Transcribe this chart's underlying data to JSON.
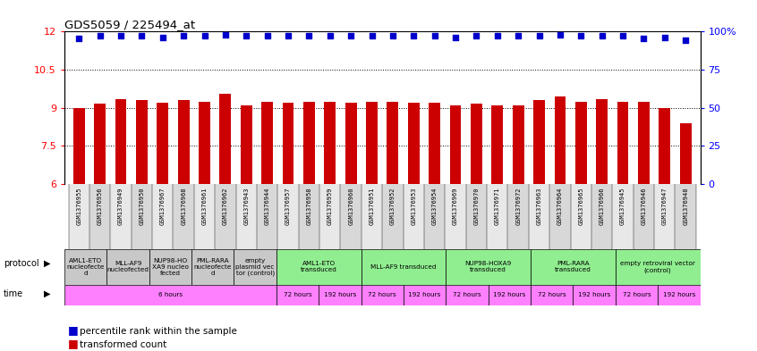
{
  "title": "GDS5059 / 225494_at",
  "samples": [
    "GSM1376955",
    "GSM1376956",
    "GSM1376949",
    "GSM1376950",
    "GSM1376967",
    "GSM1376968",
    "GSM1376961",
    "GSM1376962",
    "GSM1376943",
    "GSM1376944",
    "GSM1376957",
    "GSM1376958",
    "GSM1376959",
    "GSM1376960",
    "GSM1376951",
    "GSM1376952",
    "GSM1376953",
    "GSM1376954",
    "GSM1376969",
    "GSM1376970",
    "GSM1376971",
    "GSM1376972",
    "GSM1376963",
    "GSM1376964",
    "GSM1376965",
    "GSM1376966",
    "GSM1376945",
    "GSM1376946",
    "GSM1376947",
    "GSM1376948"
  ],
  "red_values": [
    9.0,
    9.15,
    9.35,
    9.3,
    9.2,
    9.3,
    9.25,
    9.55,
    9.1,
    9.25,
    9.2,
    9.25,
    9.25,
    9.2,
    9.25,
    9.25,
    9.2,
    9.2,
    9.1,
    9.15,
    9.1,
    9.1,
    9.3,
    9.45,
    9.25,
    9.35,
    9.25,
    9.25,
    9.0,
    8.4
  ],
  "blue_values": [
    11.72,
    11.82,
    11.85,
    11.85,
    11.78,
    11.85,
    11.85,
    11.88,
    11.82,
    11.85,
    11.82,
    11.82,
    11.85,
    11.82,
    11.85,
    11.85,
    11.82,
    11.82,
    11.75,
    11.82,
    11.82,
    11.82,
    11.85,
    11.88,
    11.82,
    11.85,
    11.82,
    11.72,
    11.75,
    11.65
  ],
  "ylim_left": [
    6,
    12
  ],
  "ylim_right": [
    0,
    100
  ],
  "yticks_left": [
    6,
    7.5,
    9,
    10.5,
    12
  ],
  "yticks_right": [
    0,
    25,
    50,
    75,
    100
  ],
  "bar_color": "#CC0000",
  "dot_color": "#0000CC",
  "proto_spans": [
    [
      0,
      2,
      "AML1-ETO\nnucleofecte\nd",
      "#c8c8c8"
    ],
    [
      2,
      4,
      "MLL-AF9\nnucleofected",
      "#c8c8c8"
    ],
    [
      4,
      6,
      "NUP98-HO\nXA9 nucleo\nfected",
      "#c8c8c8"
    ],
    [
      6,
      8,
      "PML-RARA\nnucleofecte\nd",
      "#c8c8c8"
    ],
    [
      8,
      10,
      "empty\nplasmid vec\ntor (control)",
      "#c8c8c8"
    ],
    [
      10,
      14,
      "AML1-ETO\ntransduced",
      "#90EE90"
    ],
    [
      14,
      18,
      "MLL-AF9 transduced",
      "#90EE90"
    ],
    [
      18,
      22,
      "NUP98-HOXA9\ntransduced",
      "#90EE90"
    ],
    [
      22,
      26,
      "PML-RARA\ntransduced",
      "#90EE90"
    ],
    [
      26,
      30,
      "empty retroviral vector\n(control)",
      "#90EE90"
    ]
  ],
  "time_spans": [
    [
      0,
      10,
      "6 hours",
      "#FF80FF"
    ],
    [
      10,
      12,
      "72 hours",
      "#FF80FF"
    ],
    [
      12,
      14,
      "192 hours",
      "#FF80FF"
    ],
    [
      14,
      16,
      "72 hours",
      "#FF80FF"
    ],
    [
      16,
      18,
      "192 hours",
      "#FF80FF"
    ],
    [
      18,
      20,
      "72 hours",
      "#FF80FF"
    ],
    [
      20,
      22,
      "192 hours",
      "#FF80FF"
    ],
    [
      22,
      24,
      "72 hours",
      "#FF80FF"
    ],
    [
      24,
      26,
      "192 hours",
      "#FF80FF"
    ],
    [
      26,
      28,
      "72 hours",
      "#FF80FF"
    ],
    [
      28,
      30,
      "192 hours",
      "#FF80FF"
    ]
  ],
  "legend": [
    {
      "color": "#CC0000",
      "label": "transformed count"
    },
    {
      "color": "#0000CC",
      "label": "percentile rank within the sample"
    }
  ]
}
